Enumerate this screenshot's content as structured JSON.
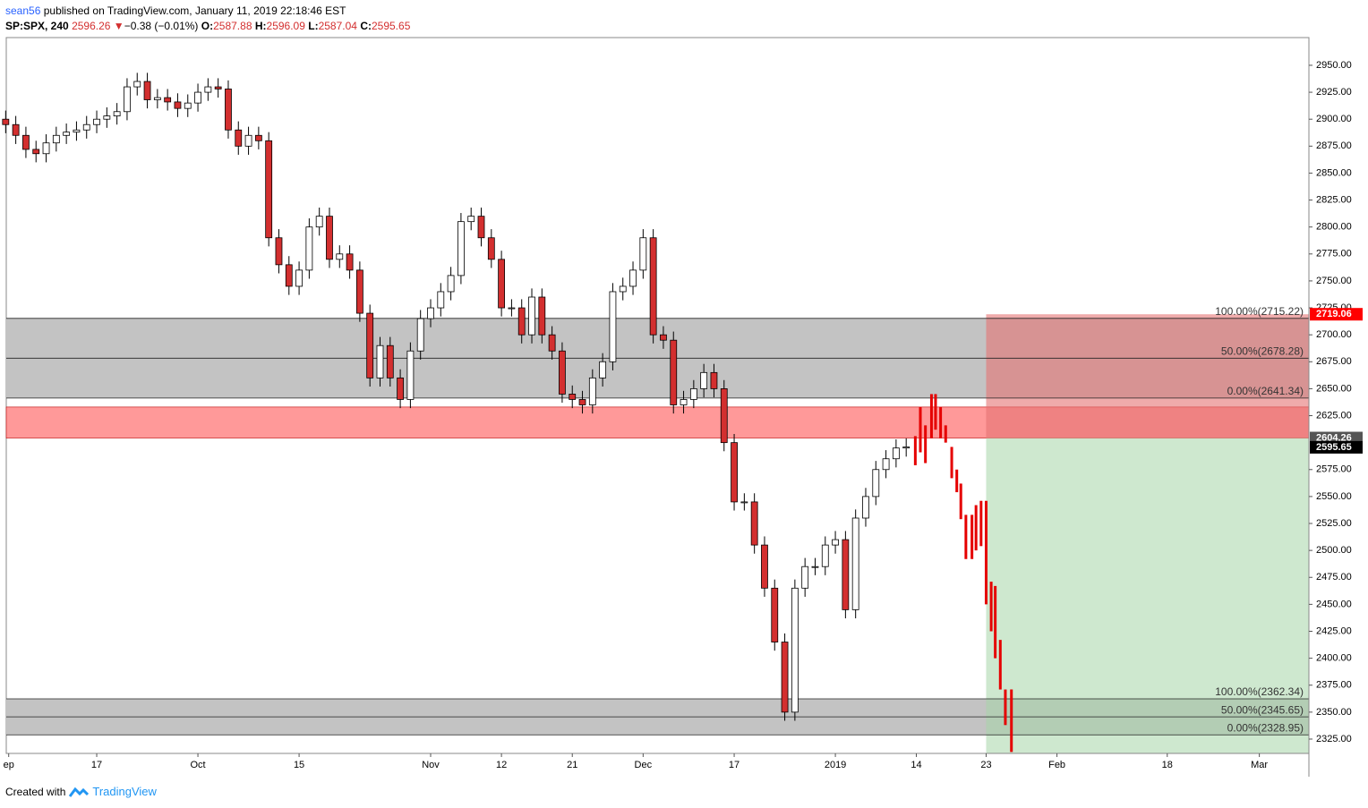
{
  "header": {
    "user": "sean56",
    "published": "published on TradingView.com, January 11, 2019 22:18:46 EST",
    "symbol": "SP:SPX, 240",
    "last": "2596.26",
    "arrow": "▼",
    "change": "−0.38 (−0.01%)",
    "o_key": "O:",
    "o": "2587.88",
    "h_key": "H:",
    "h": "2596.09",
    "l_key": "L:",
    "l": "2587.04",
    "c_key": "C:",
    "c": "2595.65"
  },
  "footer": {
    "created": "Created with",
    "brand": "TradingView"
  },
  "chart_data": {
    "type": "candlestick",
    "up_color": "#ffffff",
    "down_color": "#d32f2f",
    "border_color": "#000000",
    "xlim": [
      -8.94,
      119.8
    ],
    "ylim": [
      2311.7,
      2975.7
    ],
    "xticks": [
      {
        "value": -8.7,
        "label": "ep"
      },
      {
        "value": 0,
        "label": "17"
      },
      {
        "value": 10,
        "label": "Oct"
      },
      {
        "value": 20,
        "label": "15"
      },
      {
        "value": 33,
        "label": "Nov"
      },
      {
        "value": 40,
        "label": "12"
      },
      {
        "value": 47,
        "label": "21"
      },
      {
        "value": 54,
        "label": "Dec"
      },
      {
        "value": 63,
        "label": "17"
      },
      {
        "value": 73,
        "label": "2019"
      },
      {
        "value": 81,
        "label": "14"
      },
      {
        "value": 87.9,
        "label": "23"
      },
      {
        "value": 94.9,
        "label": "Feb"
      },
      {
        "value": 105.8,
        "label": "18"
      },
      {
        "value": 114.9,
        "label": "Mar"
      }
    ],
    "yticks": [
      {
        "value": 2325,
        "label": "2325.00"
      },
      {
        "value": 2350,
        "label": "2350.00"
      },
      {
        "value": 2375,
        "label": "2375.00"
      },
      {
        "value": 2400,
        "label": "2400.00"
      },
      {
        "value": 2425,
        "label": "2425.00"
      },
      {
        "value": 2450,
        "label": "2450.00"
      },
      {
        "value": 2475,
        "label": "2475.00"
      },
      {
        "value": 2500,
        "label": "2500.00"
      },
      {
        "value": 2525,
        "label": "2525.00"
      },
      {
        "value": 2550,
        "label": "2550.00"
      },
      {
        "value": 2575,
        "label": "2575.00"
      },
      {
        "value": 2625,
        "label": "2625.00"
      },
      {
        "value": 2650,
        "label": "2650.00"
      },
      {
        "value": 2675,
        "label": "2675.00"
      },
      {
        "value": 2700,
        "label": "2700.00"
      },
      {
        "value": 2725,
        "label": "2725.00"
      },
      {
        "value": 2750,
        "label": "2750.00"
      },
      {
        "value": 2775,
        "label": "2775.00"
      },
      {
        "value": 2800,
        "label": "2800.00"
      },
      {
        "value": 2825,
        "label": "2825.00"
      },
      {
        "value": 2850,
        "label": "2850.00"
      },
      {
        "value": 2875,
        "label": "2875.00"
      },
      {
        "value": 2900,
        "label": "2900.00"
      },
      {
        "value": 2925,
        "label": "2925.00"
      },
      {
        "value": 2950,
        "label": "2950.00"
      }
    ],
    "x": [
      -9,
      -8,
      -7,
      -6,
      -5,
      -4,
      -3,
      -2,
      -1,
      0,
      1,
      2,
      3,
      4,
      5,
      6,
      7,
      8,
      9,
      10,
      11,
      12,
      13,
      14,
      15,
      16,
      17,
      18,
      19,
      20,
      21,
      22,
      23,
      24,
      25,
      26,
      27,
      28,
      29,
      30,
      31,
      32,
      33,
      34,
      35,
      36,
      37,
      38,
      39,
      40,
      41,
      42,
      43,
      44,
      45,
      46,
      47,
      48,
      49,
      50,
      51,
      52,
      53,
      54,
      55,
      56,
      57,
      58,
      59,
      60,
      61,
      62,
      63,
      64,
      65,
      66,
      67,
      68,
      69,
      70,
      71,
      72,
      73,
      74,
      75,
      76,
      77,
      78,
      79,
      80
    ],
    "open": [
      2900,
      2895,
      2885,
      2872,
      2868,
      2878,
      2885,
      2888,
      2890,
      2895,
      2900,
      2903,
      2907,
      2930,
      2935,
      2918,
      2920,
      2916,
      2910,
      2915,
      2925,
      2930,
      2928,
      2890,
      2875,
      2885,
      2880,
      2790,
      2765,
      2745,
      2760,
      2800,
      2810,
      2770,
      2775,
      2760,
      2720,
      2660,
      2690,
      2660,
      2640,
      2685,
      2715,
      2725,
      2740,
      2755,
      2805,
      2810,
      2790,
      2770,
      2725,
      2725,
      2700,
      2735,
      2700,
      2685,
      2645,
      2640,
      2635,
      2660,
      2675,
      2740,
      2745,
      2760,
      2790,
      2700,
      2695,
      2635,
      2640,
      2650,
      2665,
      2650,
      2600,
      2545,
      2545,
      2505,
      2465,
      2415,
      2350,
      2465,
      2485,
      2485,
      2505,
      2510,
      2445,
      2530,
      2550,
      2575,
      2585,
      2595
    ],
    "high": [
      2908,
      2903,
      2893,
      2880,
      2886,
      2893,
      2896,
      2898,
      2903,
      2908,
      2911,
      2915,
      2938,
      2943,
      2943,
      2928,
      2928,
      2924,
      2923,
      2933,
      2938,
      2938,
      2936,
      2898,
      2893,
      2893,
      2888,
      2798,
      2773,
      2768,
      2808,
      2818,
      2818,
      2783,
      2783,
      2768,
      2728,
      2698,
      2698,
      2668,
      2693,
      2723,
      2733,
      2748,
      2763,
      2813,
      2818,
      2818,
      2798,
      2778,
      2733,
      2733,
      2743,
      2743,
      2708,
      2693,
      2653,
      2648,
      2668,
      2683,
      2748,
      2753,
      2768,
      2798,
      2798,
      2708,
      2703,
      2648,
      2658,
      2673,
      2673,
      2658,
      2608,
      2553,
      2553,
      2513,
      2473,
      2423,
      2473,
      2493,
      2493,
      2513,
      2518,
      2518,
      2538,
      2558,
      2583,
      2593,
      2603,
      2604
    ],
    "low": [
      2887,
      2877,
      2864,
      2860,
      2860,
      2870,
      2877,
      2880,
      2882,
      2887,
      2892,
      2895,
      2899,
      2922,
      2910,
      2910,
      2908,
      2902,
      2902,
      2907,
      2917,
      2920,
      2882,
      2867,
      2867,
      2872,
      2782,
      2757,
      2737,
      2737,
      2752,
      2792,
      2762,
      2762,
      2752,
      2712,
      2652,
      2652,
      2652,
      2632,
      2632,
      2677,
      2707,
      2717,
      2732,
      2747,
      2797,
      2782,
      2762,
      2717,
      2717,
      2692,
      2692,
      2692,
      2677,
      2637,
      2632,
      2627,
      2627,
      2652,
      2667,
      2732,
      2737,
      2752,
      2692,
      2687,
      2627,
      2627,
      2632,
      2642,
      2642,
      2592,
      2537,
      2537,
      2497,
      2457,
      2407,
      2342,
      2342,
      2457,
      2477,
      2477,
      2497,
      2437,
      2437,
      2522,
      2542,
      2567,
      2577,
      2587
    ],
    "close": [
      2895,
      2885,
      2872,
      2868,
      2878,
      2885,
      2888,
      2890,
      2895,
      2900,
      2903,
      2907,
      2930,
      2935,
      2918,
      2920,
      2916,
      2910,
      2915,
      2925,
      2930,
      2928,
      2890,
      2875,
      2885,
      2880,
      2790,
      2765,
      2745,
      2760,
      2800,
      2810,
      2770,
      2775,
      2760,
      2720,
      2660,
      2690,
      2660,
      2640,
      2685,
      2715,
      2725,
      2740,
      2755,
      2805,
      2810,
      2790,
      2770,
      2725,
      2725,
      2700,
      2735,
      2700,
      2685,
      2645,
      2640,
      2635,
      2660,
      2675,
      2740,
      2745,
      2760,
      2790,
      2700,
      2695,
      2635,
      2640,
      2650,
      2665,
      2650,
      2600,
      2545,
      2545,
      2505,
      2465,
      2415,
      2350,
      2465,
      2485,
      2485,
      2505,
      2510,
      2445,
      2530,
      2550,
      2575,
      2585,
      2595,
      2596
    ],
    "projection": {
      "color": "#e50000",
      "x": [
        80.9,
        81.4,
        81.9,
        82.5,
        82.9,
        83.4,
        83.9,
        84.5,
        85.0,
        85.4,
        85.9,
        86.5,
        86.9,
        87.4,
        87.9,
        88.4,
        88.8,
        89.3,
        89.8,
        90.4
      ],
      "high": [
        2606,
        2633,
        2616,
        2645,
        2645,
        2633,
        2616,
        2596,
        2575,
        2562,
        2533,
        2533,
        2542,
        2546,
        2546,
        2471,
        2467,
        2417,
        2371,
        2371
      ],
      "low": [
        2579,
        2591,
        2581,
        2604,
        2612,
        2604,
        2600,
        2567,
        2554,
        2529,
        2492,
        2492,
        2500,
        2504,
        2450,
        2425,
        2400,
        2371,
        2338,
        2313
      ]
    },
    "fib_zones": [
      {
        "color": "#c3c3c3",
        "levels": [
          {
            "value": 2715.22,
            "label": "100.00%(2715.22)"
          },
          {
            "value": 2678.28,
            "label": "50.00%(2678.28)"
          },
          {
            "value": 2641.34,
            "label": "0.00%(2641.34)"
          }
        ]
      },
      {
        "color": "#c3c3c3",
        "levels": [
          {
            "value": 2362.34,
            "label": "100.00%(2362.34)"
          },
          {
            "value": 2345.65,
            "label": "50.00%(2345.65)"
          },
          {
            "value": 2328.95,
            "label": "0.00%(2328.95)"
          }
        ]
      }
    ],
    "zone": {
      "color": "#ff9999",
      "range": [
        2604.26,
        2633
      ]
    },
    "position": {
      "start": 87.9,
      "entry": 2604.26,
      "stop": 2719.06,
      "target": 2311.7,
      "stop_color": "#e57373",
      "target_color": "#a5d6a7"
    },
    "price_labels": [
      {
        "value": 2719.06,
        "label": "2719.06",
        "color": "#ff0000"
      },
      {
        "value": 2604.26,
        "label": "2604.26",
        "color": "#555555"
      },
      {
        "value": 2595.65,
        "label": "2595.65",
        "color": "#000000"
      }
    ]
  }
}
